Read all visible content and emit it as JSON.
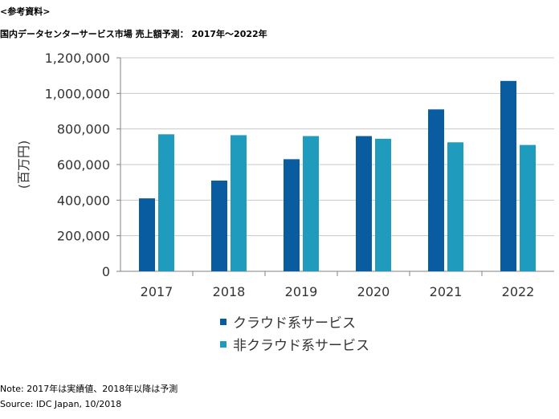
{
  "header": {
    "ref_label": "<参考資料>",
    "title": "国内データセンターサービス市場 売上額予測： 2017年～2022年"
  },
  "footer": {
    "note": "Note: 2017年は実績値、2018年以降は予測",
    "source": "Source: IDC Japan, 10/2018"
  },
  "chart_data": {
    "type": "bar",
    "title": "国内データセンターサービス市場 売上額予測： 2017年～2022年",
    "xlabel": "",
    "ylabel": "(百万円)",
    "categories": [
      "2017",
      "2018",
      "2019",
      "2020",
      "2021",
      "2022"
    ],
    "ylim": [
      0,
      1200000
    ],
    "yticks": [
      0,
      200000,
      400000,
      600000,
      800000,
      1000000,
      1200000
    ],
    "ytick_labels": [
      "0",
      "200,000",
      "400,000",
      "600,000",
      "800,000",
      "1,000,000",
      "1,200,000"
    ],
    "grid": true,
    "legend_position": "bottom-center",
    "series": [
      {
        "name": "クラウド系サービス",
        "color": "#0a5ca0",
        "values": [
          410000,
          510000,
          630000,
          760000,
          910000,
          1070000
        ]
      },
      {
        "name": "非クラウド系サービス",
        "color": "#1f9bbd",
        "values": [
          770000,
          765000,
          760000,
          745000,
          725000,
          710000
        ]
      }
    ]
  }
}
